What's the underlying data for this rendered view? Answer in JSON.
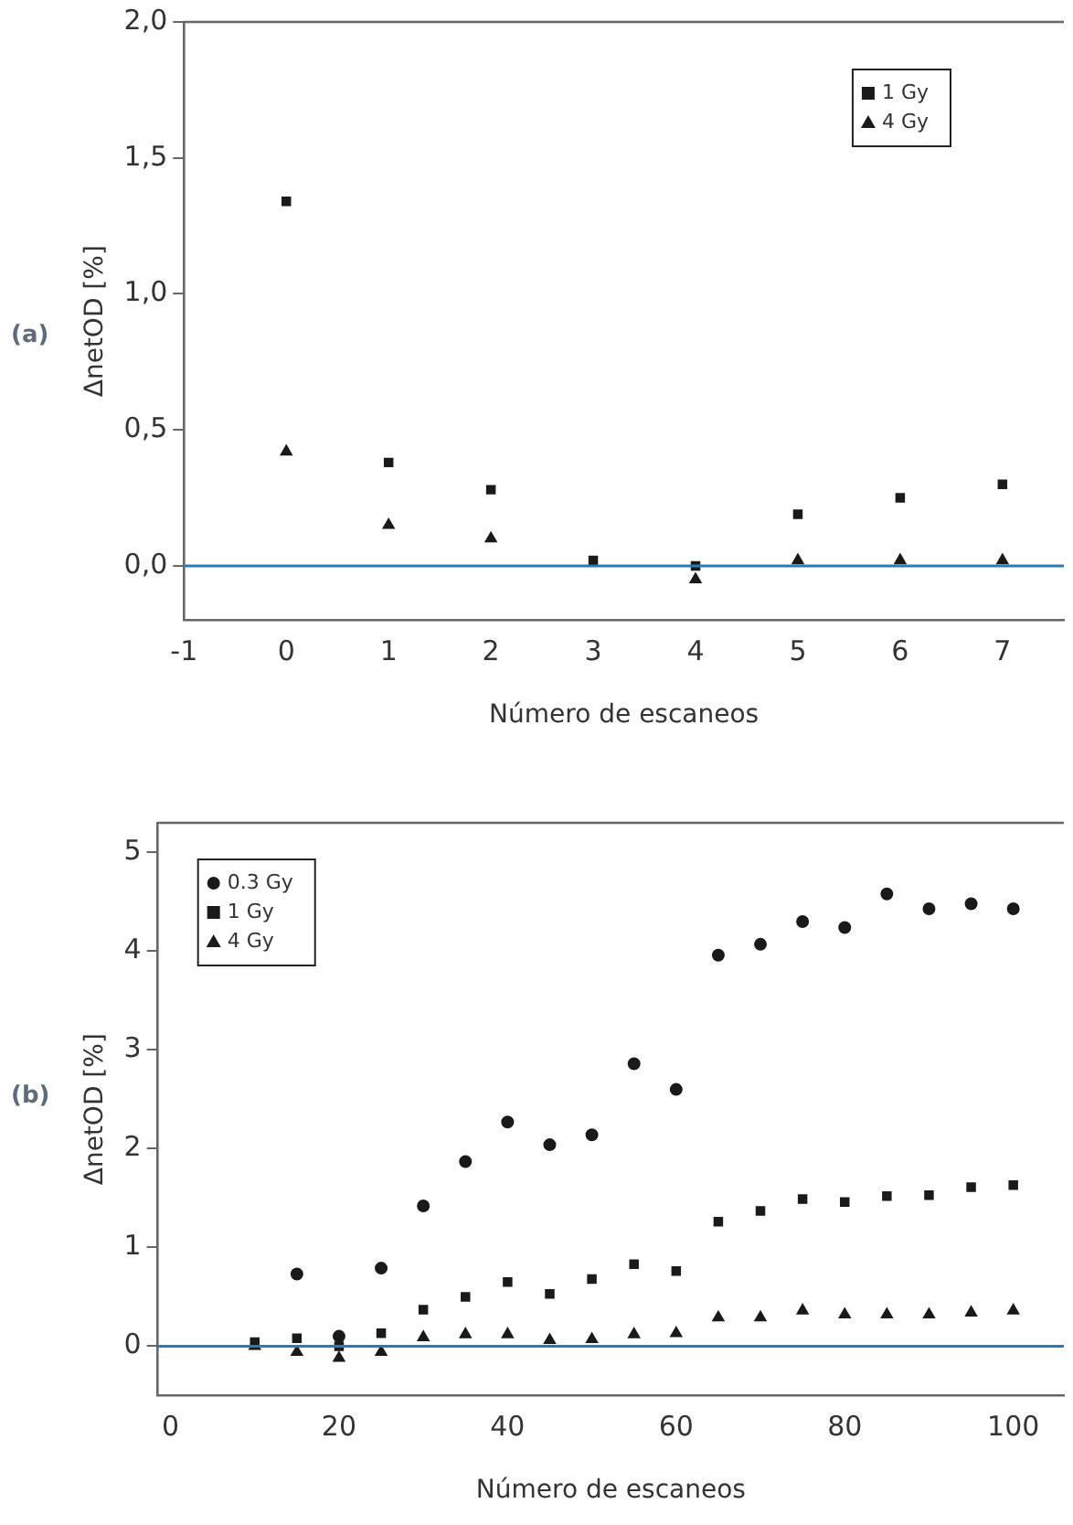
{
  "chart_data": [
    {
      "type": "scatter",
      "xlabel": "Número de escaneos",
      "ylabel": "ΔnetOD [%]",
      "annotations": [
        "(a)"
      ],
      "x": [
        0,
        1,
        2,
        3,
        4,
        5,
        6,
        7
      ],
      "xlim": [
        -1,
        7.6
      ],
      "xticks": [
        -1,
        0,
        1,
        2,
        3,
        4,
        5,
        6,
        7
      ],
      "ylim": [
        -0.2,
        2.0
      ],
      "yticks": [
        {
          "value": 0,
          "label": "0,0"
        },
        {
          "value": 0.5,
          "label": "0,5"
        },
        {
          "value": 1,
          "label": "1,0"
        },
        {
          "value": 1.5,
          "label": "1,5"
        },
        {
          "value": 2,
          "label": "2,0"
        }
      ],
      "grid": false,
      "legend": "top right",
      "ref_lines": [
        {
          "axis": "y",
          "value": 0,
          "color": "#2a7ab8"
        }
      ],
      "series": [
        {
          "name": "1 Gy",
          "color": "#1a1a1a",
          "marker": "square",
          "values": [
            1.34,
            0.38,
            0.28,
            0.02,
            0.0,
            0.19,
            0.25,
            0.3
          ]
        },
        {
          "name": "4 Gy",
          "color": "#1a1a1a",
          "marker": "triangle",
          "values": [
            0.42,
            0.15,
            0.1,
            null,
            -0.05,
            0.02,
            0.02,
            0.02
          ]
        }
      ]
    },
    {
      "type": "scatter",
      "xlabel": "Número de escaneos",
      "ylabel": "ΔnetOD [%]",
      "annotations": [
        "(b)"
      ],
      "x": [
        10,
        15,
        20,
        25,
        30,
        35,
        40,
        45,
        50,
        55,
        60,
        65,
        70,
        75,
        80,
        85,
        90,
        95,
        100
      ],
      "xlim": [
        -1.5,
        106
      ],
      "xticks": [
        0,
        20,
        40,
        60,
        80,
        100
      ],
      "ylim": [
        -0.5,
        5.3
      ],
      "yticks": [
        0,
        1,
        2,
        3,
        4,
        5
      ],
      "grid": false,
      "legend": "top left",
      "ref_lines": [
        {
          "axis": "y",
          "value": 0,
          "color": "#2a7ab8"
        }
      ],
      "series": [
        {
          "name": "0.3 Gy",
          "color": "#1a1a1a",
          "marker": "circle",
          "values": [
            null,
            0.73,
            0.1,
            0.79,
            1.42,
            1.87,
            2.27,
            2.04,
            2.14,
            2.86,
            2.6,
            3.96,
            4.07,
            4.3,
            4.24,
            4.58,
            4.43,
            4.48,
            4.43
          ]
        },
        {
          "name": "1 Gy",
          "color": "#1a1a1a",
          "marker": "square",
          "values": [
            0.04,
            0.08,
            0.0,
            0.13,
            0.37,
            0.5,
            0.65,
            0.53,
            0.68,
            0.83,
            0.76,
            1.26,
            1.37,
            1.49,
            1.46,
            1.52,
            1.53,
            1.61,
            1.63
          ]
        },
        {
          "name": "4 Gy",
          "color": "#1a1a1a",
          "marker": "triangle",
          "values": [
            0.0,
            -0.06,
            -0.12,
            -0.06,
            0.09,
            0.12,
            0.12,
            0.06,
            0.07,
            0.12,
            0.13,
            0.29,
            0.29,
            0.36,
            0.32,
            0.32,
            0.32,
            0.34,
            0.36
          ]
        }
      ]
    }
  ]
}
